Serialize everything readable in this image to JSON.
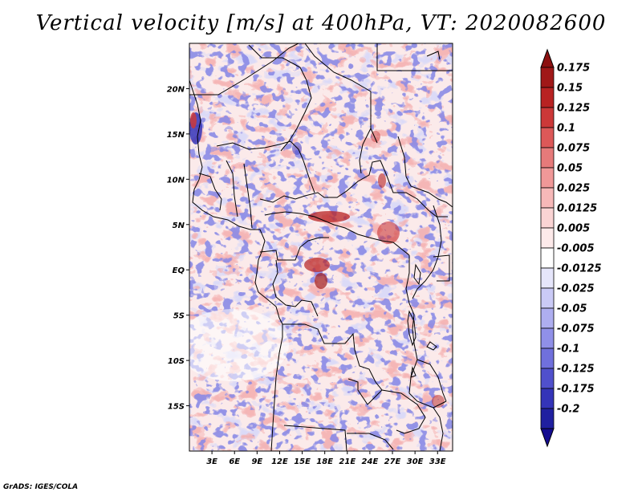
{
  "title": "Vertical velocity [m/s] at 400hPa, VT: 2020082600",
  "credit": "GrADS: IGES/COLA",
  "map": {
    "lon_range": [
      0,
      35
    ],
    "lat_range": [
      -20,
      25
    ],
    "lat_ticks": [
      {
        "value": 20,
        "label": "20N"
      },
      {
        "value": 15,
        "label": "15N"
      },
      {
        "value": 10,
        "label": "10N"
      },
      {
        "value": 5,
        "label": "5N"
      },
      {
        "value": 0,
        "label": "EQ"
      },
      {
        "value": -5,
        "label": "5S"
      },
      {
        "value": -10,
        "label": "10S"
      },
      {
        "value": -15,
        "label": "15S"
      }
    ],
    "lon_ticks": [
      {
        "value": 3,
        "label": "3E"
      },
      {
        "value": 6,
        "label": "6E"
      },
      {
        "value": 9,
        "label": "9E"
      },
      {
        "value": 12,
        "label": "12E"
      },
      {
        "value": 15,
        "label": "15E"
      },
      {
        "value": 18,
        "label": "18E"
      },
      {
        "value": 21,
        "label": "21E"
      },
      {
        "value": 24,
        "label": "24E"
      },
      {
        "value": 27,
        "label": "27E"
      },
      {
        "value": 30,
        "label": "30E"
      },
      {
        "value": 33,
        "label": "33E"
      }
    ]
  },
  "colorbar": {
    "levels": [
      {
        "label": "0.175",
        "color": "#a01818"
      },
      {
        "label": "0.15",
        "color": "#b82222"
      },
      {
        "label": "0.125",
        "color": "#cc3838"
      },
      {
        "label": "0.1",
        "color": "#dc5858"
      },
      {
        "label": "0.075",
        "color": "#e67a7a"
      },
      {
        "label": "0.05",
        "color": "#f09898"
      },
      {
        "label": "0.025",
        "color": "#f6b8b8"
      },
      {
        "label": "0.0125",
        "color": "#fad4d4"
      },
      {
        "label": "0.005",
        "color": "#fdeaea"
      },
      {
        "label": "-0.005",
        "color": "#ffffff"
      },
      {
        "label": "-0.0125",
        "color": "#e6e6fb"
      },
      {
        "label": "-0.025",
        "color": "#cacaf6"
      },
      {
        "label": "-0.05",
        "color": "#aeaef0"
      },
      {
        "label": "-0.075",
        "color": "#9090e8"
      },
      {
        "label": "-0.1",
        "color": "#7070dc"
      },
      {
        "label": "-0.125",
        "color": "#5050cc"
      },
      {
        "label": "-0.175",
        "color": "#3434b8"
      },
      {
        "label": "-0.2",
        "color": "#2020a0"
      }
    ],
    "top_arrow_color": "#8c1010",
    "bottom_arrow_color": "#140c90"
  }
}
